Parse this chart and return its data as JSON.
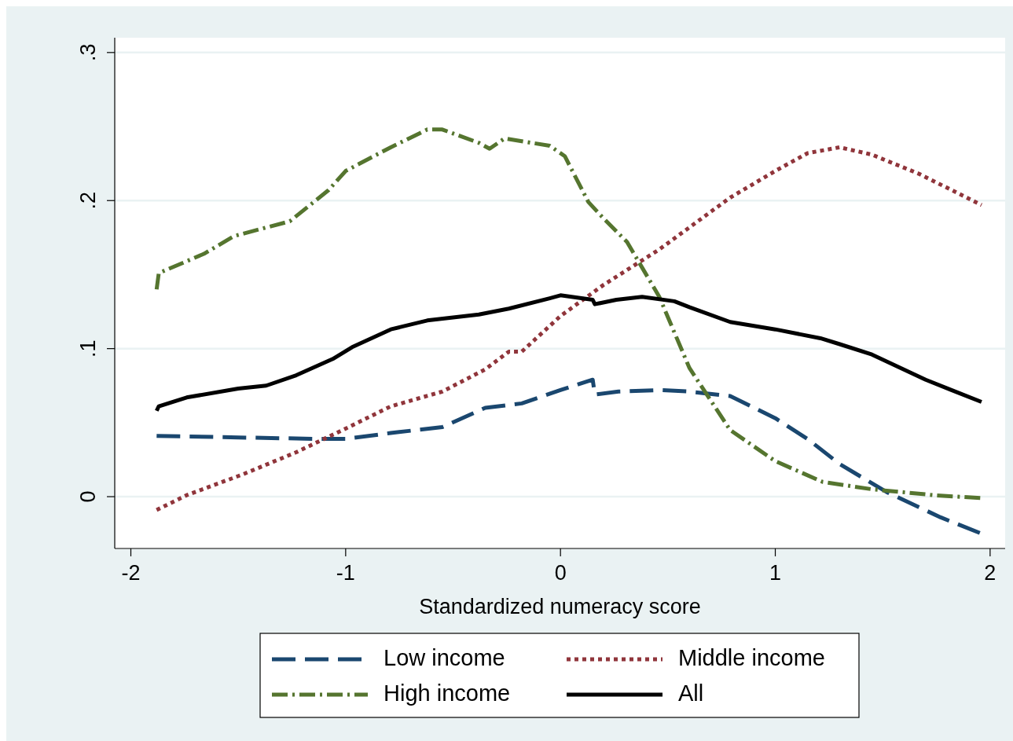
{
  "chart_data": {
    "type": "line",
    "xlabel": "Standardized numeracy score",
    "xlim": [
      -2.075,
      2.07
    ],
    "ylim": [
      -0.035,
      0.31
    ],
    "xticks": [
      {
        "value": -2,
        "label": "-2"
      },
      {
        "value": -1,
        "label": "-1"
      },
      {
        "value": 0,
        "label": "0"
      },
      {
        "value": 1,
        "label": "1"
      },
      {
        "value": 2,
        "label": "2"
      }
    ],
    "yticks": [
      {
        "value": 0,
        "label": "0"
      },
      {
        "value": 0.1,
        "label": ".1"
      },
      {
        "value": 0.2,
        "label": ".2"
      },
      {
        "value": 0.3,
        "label": ".3"
      }
    ],
    "grid": "y",
    "legend": "bottom",
    "series": [
      {
        "name": "Low income",
        "color": "#1a476f",
        "line_style": "dashed",
        "x": [
          -1.88,
          -1.5,
          -1.12,
          -1,
          -0.79,
          -0.55,
          -0.35,
          -0.18,
          0,
          0.15,
          0.16,
          0.27,
          0.46,
          0.6,
          0.79,
          1.0,
          1.15,
          1.3,
          1.52,
          1.77,
          1.96
        ],
        "values": [
          0.041,
          0.04,
          0.039,
          0.039,
          0.043,
          0.047,
          0.06,
          0.063,
          0.072,
          0.079,
          0.069,
          0.071,
          0.072,
          0.071,
          0.068,
          0.053,
          0.039,
          0.022,
          0.003,
          -0.014,
          -0.025
        ]
      },
      {
        "name": "Middle income",
        "color": "#90353b",
        "line_style": "dotted",
        "x": [
          -1.88,
          -1.74,
          -1.48,
          -1.23,
          -1,
          -0.79,
          -0.55,
          -0.35,
          -0.24,
          -0.18,
          0,
          0.2,
          0.46,
          0.79,
          1.0,
          1.15,
          1.3,
          1.45,
          1.67,
          1.85,
          1.96
        ],
        "values": [
          -0.009,
          0.001,
          0.015,
          0.03,
          0.046,
          0.061,
          0.071,
          0.086,
          0.098,
          0.098,
          0.122,
          0.143,
          0.167,
          0.202,
          0.22,
          0.232,
          0.236,
          0.231,
          0.218,
          0.205,
          0.197
        ]
      },
      {
        "name": "High income",
        "color": "#55752f",
        "line_style": "dashdot",
        "x": [
          -1.88,
          -1.87,
          -1.66,
          -1.52,
          -1.26,
          -1.08,
          -1.0,
          -0.79,
          -0.62,
          -0.55,
          -0.38,
          -0.33,
          -0.26,
          -0.05,
          0.02,
          0.13,
          0.2,
          0.31,
          0.46,
          0.6,
          0.79,
          1.0,
          1.22,
          1.45,
          1.74,
          1.96
        ],
        "values": [
          0.14,
          0.151,
          0.164,
          0.176,
          0.186,
          0.207,
          0.22,
          0.236,
          0.248,
          0.248,
          0.239,
          0.235,
          0.242,
          0.237,
          0.23,
          0.199,
          0.188,
          0.172,
          0.135,
          0.087,
          0.045,
          0.024,
          0.01,
          0.005,
          0.001,
          -0.001
        ]
      },
      {
        "name": "All",
        "color": "#000000",
        "line_style": "solid",
        "x": [
          -1.88,
          -1.87,
          -1.74,
          -1.5,
          -1.37,
          -1.23,
          -1.06,
          -0.97,
          -0.79,
          -0.62,
          -0.38,
          -0.24,
          -0.05,
          0,
          0.15,
          0.16,
          0.26,
          0.38,
          0.53,
          0.6,
          0.79,
          1.0,
          1.21,
          1.3,
          1.45,
          1.7,
          1.82,
          1.96
        ],
        "values": [
          0.058,
          0.061,
          0.067,
          0.073,
          0.075,
          0.082,
          0.093,
          0.101,
          0.113,
          0.119,
          0.123,
          0.127,
          0.134,
          0.136,
          0.133,
          0.13,
          0.133,
          0.135,
          0.132,
          0.128,
          0.118,
          0.113,
          0.107,
          0.103,
          0.096,
          0.079,
          0.072,
          0.064
        ]
      }
    ]
  }
}
